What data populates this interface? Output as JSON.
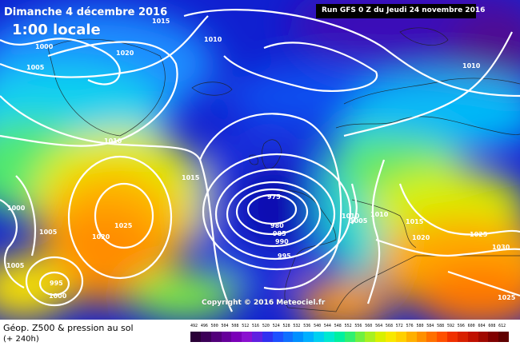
{
  "header": {
    "date": "Dimanche 4 décembre 2016",
    "time_label": "1:00 locale",
    "run_info": "Run GFS 0 Z du Jeudi 24 novembre 2016"
  },
  "copyright": "Copyright © 2016 Meteociel.fr",
  "footer": {
    "title": "Géop. Z500 & pression au sol",
    "subtitle": "(+ 240h)"
  },
  "isobar_labels": [
    "1015",
    "1010",
    "1000",
    "1005",
    "1020",
    "1010",
    "1010",
    "1015",
    "1000",
    "1005",
    "1020",
    "1025",
    "1005",
    "995",
    "1000",
    "975",
    "980",
    "985",
    "990",
    "995",
    "1010",
    "1005",
    "1010",
    "1015",
    "1020",
    "1025",
    "1030",
    "1025"
  ],
  "scale": {
    "values": [
      "492",
      "496",
      "500",
      "504",
      "508",
      "512",
      "516",
      "520",
      "524",
      "528",
      "532",
      "536",
      "540",
      "544",
      "548",
      "552",
      "556",
      "560",
      "564",
      "568",
      "572",
      "576",
      "580",
      "584",
      "588",
      "592",
      "596",
      "600",
      "604",
      "608",
      "612"
    ],
    "colors": [
      "#2a0038",
      "#3c0058",
      "#52007a",
      "#66009a",
      "#7a00b8",
      "#8a10d0",
      "#6020e0",
      "#3030f0",
      "#1e50ff",
      "#1070ff",
      "#0090ff",
      "#00b0ff",
      "#00d0f0",
      "#00e8d0",
      "#00f0a0",
      "#30f070",
      "#70f040",
      "#a8f020",
      "#d8f000",
      "#f8e800",
      "#ffd000",
      "#ffb000",
      "#ff9000",
      "#ff7000",
      "#ff5000",
      "#f03000",
      "#d82000",
      "#c01000",
      "#a00800",
      "#800000",
      "#600000"
    ]
  },
  "colors": {
    "background_deep_blue": "#1010c8",
    "ocean_mid_blue": "#0070ff",
    "cyan": "#00d8f0",
    "green": "#40e860",
    "yellow": "#f0f000",
    "orange": "#ff9000",
    "isobar": "#ffffff"
  }
}
